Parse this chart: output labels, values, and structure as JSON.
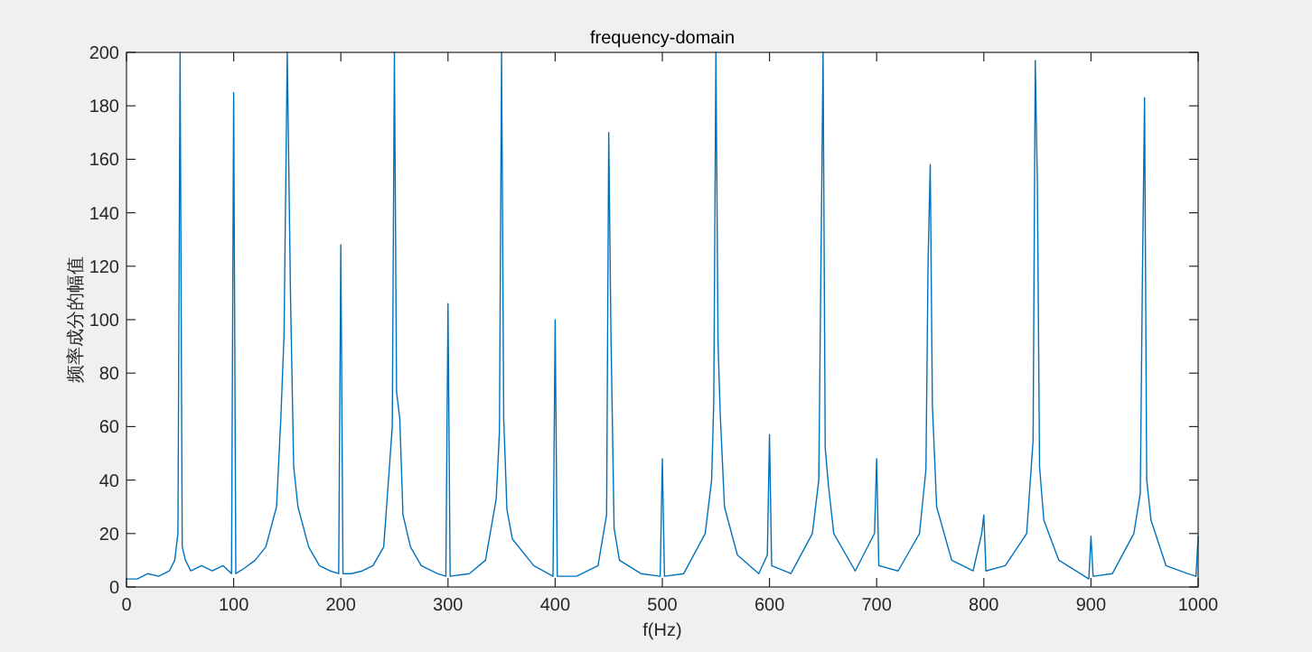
{
  "chart_data": {
    "type": "line",
    "title": "frequency-domain",
    "xlabel": "f(Hz)",
    "ylabel": "频率成分的幅值",
    "x": [
      0,
      10,
      20,
      30,
      40,
      45,
      48,
      50,
      52,
      55,
      60,
      70,
      80,
      90,
      98,
      100,
      102,
      110,
      120,
      130,
      140,
      144,
      147,
      150,
      153,
      156,
      160,
      170,
      180,
      190,
      198,
      200,
      202,
      210,
      220,
      230,
      240,
      245,
      248,
      250,
      252,
      255,
      258,
      265,
      275,
      290,
      298,
      300,
      302,
      320,
      335,
      345,
      348,
      350,
      352,
      355,
      360,
      380,
      398,
      400,
      402,
      420,
      440,
      448,
      450,
      452,
      455,
      460,
      480,
      498,
      500,
      502,
      520,
      540,
      546,
      548,
      550,
      552,
      554,
      558,
      570,
      590,
      598,
      600,
      602,
      620,
      640,
      646,
      650,
      652,
      655,
      660,
      680,
      698,
      700,
      702,
      720,
      740,
      746,
      748,
      750,
      752,
      756,
      770,
      790,
      798,
      800,
      802,
      820,
      840,
      846,
      848,
      850,
      852,
      856,
      870,
      890,
      898,
      900,
      902,
      920,
      940,
      946,
      948,
      950,
      952,
      956,
      970,
      990,
      998,
      1000
    ],
    "series": [
      {
        "color": "#0072bd",
        "values": [
          3,
          3,
          5,
          4,
          6,
          10,
          20,
          200,
          15,
          10,
          6,
          8,
          6,
          8,
          5,
          185,
          5,
          7,
          10,
          15,
          30,
          63,
          94,
          200,
          110,
          45,
          30,
          15,
          8,
          6,
          5,
          128,
          5,
          5,
          6,
          8,
          15,
          43,
          60,
          200,
          73,
          63,
          27,
          15,
          8,
          5,
          4,
          106,
          4,
          5,
          10,
          33,
          58,
          200,
          63,
          29,
          18,
          8,
          4,
          100,
          4,
          4,
          8,
          27,
          170,
          96,
          22,
          10,
          5,
          4,
          48,
          4,
          5,
          20,
          40,
          69,
          200,
          91,
          65,
          30,
          12,
          5,
          12,
          57,
          8,
          5,
          20,
          40,
          200,
          52,
          38,
          20,
          6,
          20,
          48,
          8,
          6,
          20,
          44,
          122,
          158,
          68,
          30,
          10,
          6,
          20,
          27,
          6,
          8,
          20,
          55,
          197,
          150,
          45,
          25,
          10,
          5,
          3,
          19,
          4,
          5,
          20,
          35,
          116,
          183,
          40,
          25,
          8,
          5,
          4,
          19
        ]
      }
    ],
    "xlim": [
      0,
      1000
    ],
    "xticks": [
      0,
      100,
      200,
      300,
      400,
      500,
      600,
      700,
      800,
      900,
      1000
    ],
    "ylim": [
      0,
      200
    ],
    "yticks": [
      0,
      20,
      40,
      60,
      80,
      100,
      120,
      140,
      160,
      180,
      200
    ],
    "grid": false,
    "marker": "none",
    "line_style": "solid"
  }
}
